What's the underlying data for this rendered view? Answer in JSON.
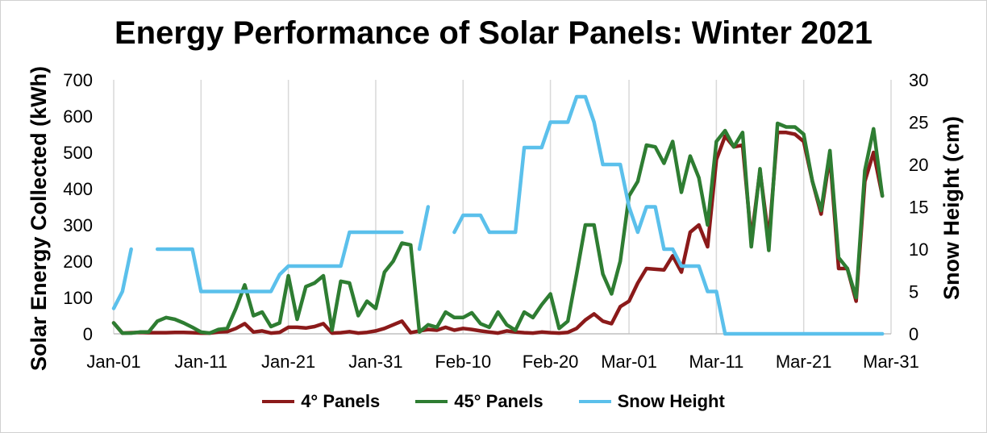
{
  "chart_data": {
    "type": "line",
    "title": "Energy Performance of Solar Panels: Winter 2021",
    "ylabel": "Solar Energy Collected (kWh)",
    "y2label": "Snow Height (cm)",
    "xlabel": "",
    "x_ticks": [
      "Jan-01",
      "Jan-11",
      "Jan-21",
      "Jan-31",
      "Feb-10",
      "Feb-20",
      "Mar-01",
      "Mar-11",
      "Mar-21",
      "Mar-31"
    ],
    "x_tick_days": [
      1,
      11,
      21,
      31,
      41,
      51,
      60,
      70,
      80,
      90
    ],
    "xlim": [
      1,
      90
    ],
    "ylim": [
      0,
      700
    ],
    "y_ticks": [
      0,
      100,
      200,
      300,
      400,
      500,
      600,
      700
    ],
    "y2lim": [
      0,
      30
    ],
    "y2_ticks": [
      0,
      5,
      10,
      15,
      20,
      25,
      30
    ],
    "grid": "vertical",
    "legend_position": "bottom",
    "series": [
      {
        "name": "4° Panels",
        "axis": "left",
        "color": "#8B1A1A",
        "x": [
          1,
          2,
          3,
          4,
          5,
          6,
          7,
          8,
          9,
          10,
          11,
          12,
          13,
          14,
          15,
          16,
          17,
          18,
          19,
          20,
          21,
          22,
          23,
          24,
          25,
          26,
          27,
          28,
          29,
          30,
          31,
          32,
          33,
          34,
          35,
          36,
          37,
          38,
          39,
          40,
          41,
          42,
          43,
          44,
          45,
          46,
          47,
          48,
          49,
          50,
          51,
          52,
          53,
          54,
          55,
          56,
          57,
          58,
          59,
          60,
          61,
          62,
          63,
          64,
          65,
          66,
          67,
          68,
          69,
          70,
          71,
          72,
          73,
          74,
          75,
          76,
          77,
          78,
          79,
          80,
          81,
          82,
          83,
          84,
          85,
          86,
          87,
          88,
          89
        ],
        "values": [
          30,
          2,
          3,
          4,
          3,
          3,
          3,
          4,
          4,
          3,
          2,
          2,
          5,
          6,
          15,
          28,
          5,
          8,
          2,
          4,
          18,
          18,
          16,
          20,
          28,
          2,
          3,
          6,
          2,
          4,
          8,
          15,
          25,
          35,
          3,
          8,
          12,
          10,
          18,
          10,
          15,
          12,
          8,
          5,
          2,
          8,
          5,
          3,
          2,
          5,
          3,
          2,
          4,
          15,
          38,
          55,
          35,
          28,
          75,
          90,
          140,
          180,
          178,
          176,
          215,
          170,
          280,
          300,
          240,
          480,
          545,
          515,
          520,
          260,
          450,
          260,
          555,
          555,
          550,
          530,
          420,
          330,
          490,
          180,
          180,
          90,
          420,
          500,
          380
        ]
      },
      {
        "name": "45° Panels",
        "axis": "left",
        "color": "#2E7D32",
        "x": [
          1,
          2,
          3,
          4,
          5,
          6,
          7,
          8,
          9,
          10,
          11,
          12,
          13,
          14,
          15,
          16,
          17,
          18,
          19,
          20,
          21,
          22,
          23,
          24,
          25,
          26,
          27,
          28,
          29,
          30,
          31,
          32,
          33,
          34,
          35,
          36,
          37,
          38,
          39,
          40,
          41,
          42,
          43,
          44,
          45,
          46,
          47,
          48,
          49,
          50,
          51,
          52,
          53,
          54,
          55,
          56,
          57,
          58,
          59,
          60,
          61,
          62,
          63,
          64,
          65,
          66,
          67,
          68,
          69,
          70,
          71,
          72,
          73,
          74,
          75,
          76,
          77,
          78,
          79,
          80,
          81,
          82,
          83,
          84,
          85,
          86,
          87,
          88,
          89
        ],
        "values": [
          30,
          2,
          2,
          5,
          5,
          35,
          45,
          40,
          30,
          18,
          5,
          2,
          12,
          15,
          70,
          135,
          50,
          60,
          20,
          30,
          160,
          40,
          130,
          140,
          160,
          10,
          145,
          140,
          50,
          90,
          70,
          170,
          200,
          250,
          245,
          5,
          25,
          18,
          60,
          45,
          45,
          58,
          28,
          18,
          60,
          25,
          10,
          60,
          45,
          80,
          110,
          15,
          35,
          165,
          300,
          300,
          165,
          110,
          200,
          380,
          420,
          520,
          515,
          470,
          530,
          390,
          490,
          430,
          300,
          530,
          560,
          515,
          555,
          240,
          455,
          230,
          580,
          570,
          570,
          550,
          420,
          340,
          505,
          210,
          180,
          100,
          450,
          565,
          380
        ]
      },
      {
        "name": "Snow Height",
        "axis": "right",
        "color": "#5BC0EB",
        "x": [
          1,
          2,
          3,
          4,
          5,
          6,
          7,
          8,
          9,
          10,
          11,
          12,
          13,
          14,
          15,
          16,
          17,
          18,
          19,
          20,
          21,
          22,
          23,
          24,
          25,
          26,
          27,
          28,
          29,
          30,
          31,
          32,
          33,
          34,
          35,
          36,
          37,
          38,
          39,
          40,
          41,
          42,
          43,
          44,
          45,
          46,
          47,
          48,
          49,
          50,
          51,
          52,
          53,
          54,
          55,
          56,
          57,
          58,
          59,
          60,
          61,
          62,
          63,
          64,
          65,
          66,
          67,
          68,
          69,
          70,
          71,
          72,
          73,
          74,
          75,
          76,
          77,
          78,
          79,
          80,
          81,
          82,
          83,
          84,
          85,
          86,
          87,
          88,
          89
        ],
        "values": [
          3,
          5,
          10,
          null,
          null,
          10,
          10,
          10,
          10,
          10,
          5,
          5,
          5,
          5,
          5,
          5,
          5,
          5,
          5,
          7,
          8,
          8,
          8,
          8,
          8,
          8,
          8,
          12,
          12,
          12,
          12,
          12,
          12,
          12,
          null,
          10,
          15,
          null,
          null,
          12,
          14,
          14,
          14,
          12,
          12,
          12,
          12,
          22,
          22,
          22,
          25,
          25,
          25,
          28,
          28,
          25,
          20,
          20,
          20,
          15,
          12,
          15,
          15,
          10,
          10,
          8,
          8,
          8,
          5,
          5,
          0,
          0,
          0,
          0,
          0,
          0,
          0,
          0,
          0,
          0,
          0,
          0,
          0,
          0,
          0,
          0,
          0,
          0,
          0
        ]
      }
    ]
  }
}
